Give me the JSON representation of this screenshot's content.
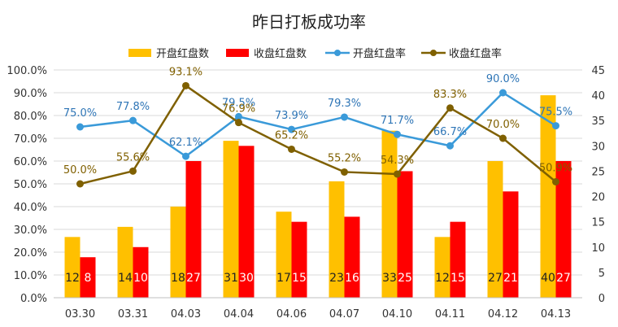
{
  "chart_data": {
    "type": "bar",
    "title": "昨日打板成功率",
    "categories": [
      "03.30",
      "03.31",
      "04.03",
      "04.04",
      "04.06",
      "04.07",
      "04.10",
      "04.11",
      "04.12",
      "04.13"
    ],
    "series": [
      {
        "name": "开盘红盘数",
        "kind": "bar",
        "axis": "right",
        "color": "#FFC000",
        "values": [
          12,
          14,
          18,
          31,
          17,
          23,
          33,
          12,
          27,
          40
        ]
      },
      {
        "name": "收盘红盘数",
        "kind": "bar",
        "axis": "right",
        "color": "#FF0000",
        "values": [
          8,
          10,
          27,
          30,
          15,
          16,
          25,
          15,
          21,
          27
        ]
      },
      {
        "name": "开盘红盘率",
        "kind": "line",
        "axis": "left",
        "color": "#3A9AD9",
        "label_color": "#2E75B6",
        "values": [
          75.0,
          77.8,
          62.1,
          79.5,
          73.9,
          79.3,
          71.7,
          66.7,
          90.0,
          75.5
        ]
      },
      {
        "name": "收盘红盘率",
        "kind": "line",
        "axis": "left",
        "color": "#7F6000",
        "label_color": "#806000",
        "values": [
          50.0,
          55.6,
          93.1,
          76.9,
          65.2,
          55.2,
          54.3,
          83.3,
          70.0,
          50.9
        ]
      }
    ],
    "y_left": {
      "ticks": [
        "0.0%",
        "10.0%",
        "20.0%",
        "30.0%",
        "40.0%",
        "50.0%",
        "60.0%",
        "70.0%",
        "80.0%",
        "90.0%",
        "100.0%"
      ],
      "min": 0,
      "max": 100
    },
    "y_right": {
      "ticks": [
        "0",
        "5",
        "10",
        "15",
        "20",
        "25",
        "30",
        "35",
        "40",
        "45"
      ],
      "min": 0,
      "max": 45
    },
    "legend_position": "top-center",
    "grid": true
  }
}
